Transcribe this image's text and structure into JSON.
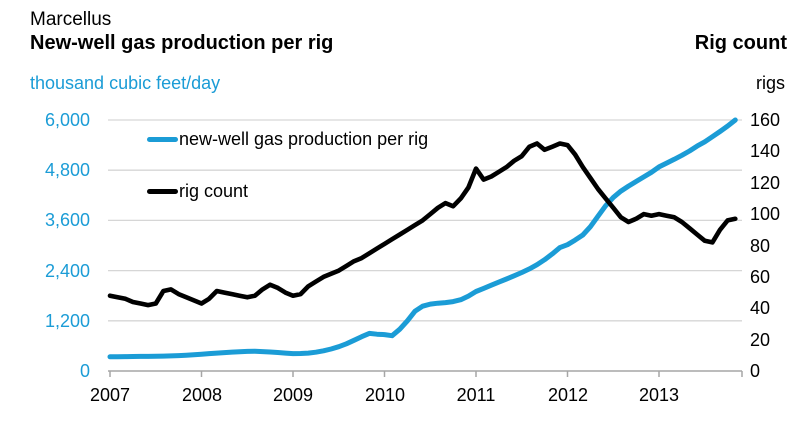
{
  "header": {
    "region": "Marcellus",
    "left_title": "New-well gas production per rig",
    "left_unit": "thousand cubic feet/day",
    "right_title": "Rig count",
    "right_unit": "rigs"
  },
  "colors": {
    "production": "#1B9CD6",
    "rig": "#000000",
    "grid": "#D6D6D6",
    "axis": "#A6A6A6",
    "text": "#000000"
  },
  "legend": [
    {
      "label": "new-well gas production per rig",
      "color_key": "production"
    },
    {
      "label": "rig count",
      "color_key": "rig"
    }
  ],
  "chart_data": {
    "type": "line",
    "title": "Marcellus new-well gas production per rig and rig count",
    "x_start": "2007-01",
    "x_end": "2013-11",
    "x_tick_labels": [
      "2007",
      "2008",
      "2009",
      "2010",
      "2011",
      "2012",
      "2013"
    ],
    "grid": "horizontal",
    "legend_position": "top-left-inside",
    "y_left": {
      "label": "thousand cubic feet/day",
      "min": 0,
      "max": 6000,
      "tick_labels": [
        "0",
        "1,200",
        "2,400",
        "3,600",
        "4,800",
        "6,000"
      ]
    },
    "y_right": {
      "label": "rigs",
      "min": 0,
      "max": 160,
      "tick_labels": [
        "0",
        "20",
        "40",
        "60",
        "80",
        "100",
        "120",
        "140",
        "160"
      ]
    },
    "series": [
      {
        "name": "new-well gas production per rig",
        "axis": "left",
        "color_key": "production",
        "values": [
          340,
          342,
          344,
          346,
          348,
          350,
          353,
          357,
          362,
          369,
          378,
          390,
          402,
          415,
          428,
          440,
          452,
          462,
          468,
          470,
          464,
          454,
          442,
          428,
          415,
          418,
          428,
          450,
          482,
          525,
          580,
          650,
          735,
          820,
          900,
          880,
          870,
          845,
          1000,
          1200,
          1430,
          1550,
          1600,
          1620,
          1635,
          1660,
          1705,
          1790,
          1900,
          1975,
          2050,
          2125,
          2200,
          2275,
          2355,
          2440,
          2540,
          2660,
          2800,
          2950,
          3020,
          3130,
          3250,
          3450,
          3700,
          3950,
          4150,
          4300,
          4420,
          4530,
          4640,
          4750,
          4880,
          4970,
          5060,
          5155,
          5260,
          5375,
          5480,
          5600,
          5725,
          5855,
          6000
        ]
      },
      {
        "name": "rig count",
        "axis": "right",
        "color_key": "rig",
        "values": [
          48,
          47,
          46,
          44,
          43,
          42,
          43,
          51,
          52,
          49,
          47,
          45,
          43,
          46,
          51,
          50,
          49,
          48,
          47,
          48,
          52,
          55,
          53,
          50,
          48,
          49,
          54,
          57,
          60,
          62,
          64,
          67,
          70,
          72,
          75,
          78,
          81,
          84,
          87,
          90,
          93,
          96,
          100,
          104,
          107,
          105,
          110,
          117,
          129,
          122,
          124,
          127,
          130,
          134,
          137,
          143,
          145,
          141,
          143,
          145,
          144,
          138,
          130,
          123,
          116,
          110,
          104,
          98,
          95,
          97,
          100,
          99,
          100,
          99,
          98,
          95,
          91,
          87,
          83,
          82,
          90,
          96,
          97
        ]
      }
    ]
  }
}
